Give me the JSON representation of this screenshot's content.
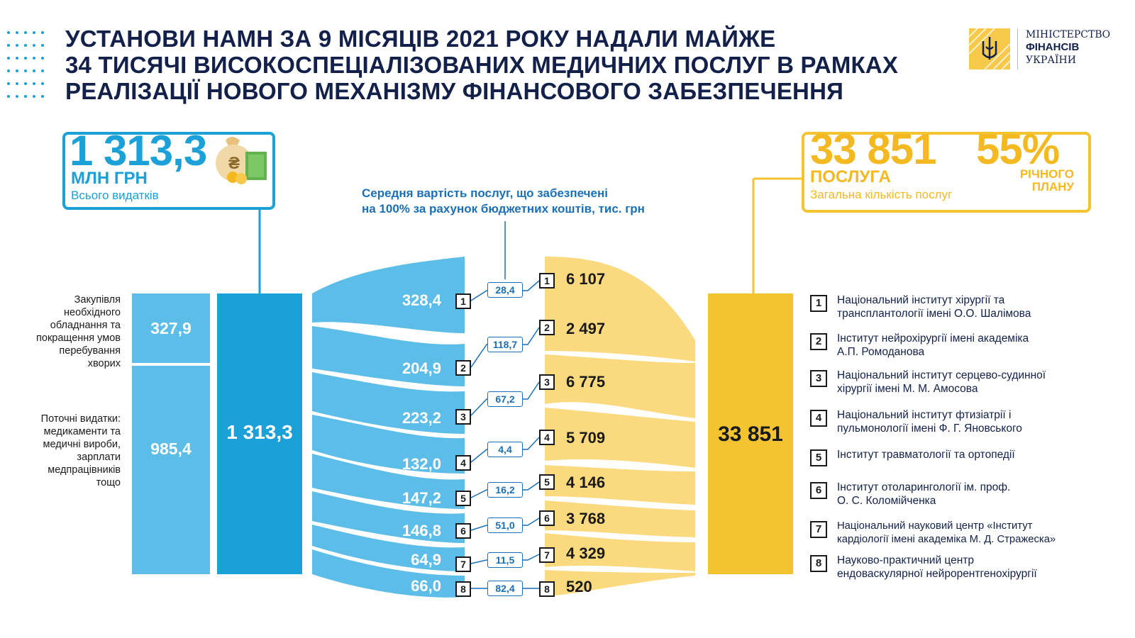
{
  "header": {
    "title": "УСТАНОВИ НАМН ЗА 9 МІСЯЦІВ 2021 РОКУ НАДАЛИ МАЙЖЕ\n34 ТИСЯЧІ ВИСОКОСПЕЦІАЛІЗОВАНИХ МЕДИЧНИХ ПОСЛУГ В РАМКАХ\nРЕАЛІЗАЦІЇ НОВОГО МЕХАНІЗМУ ФІНАНСОВОГО ЗАБЕЗПЕЧЕННЯ",
    "logo_line1": "МІНІСТЕРСТВО",
    "logo_line2": "ФІНАНСІВ",
    "logo_line3": "УКРАЇНИ"
  },
  "total_expenses": {
    "value": "1 313,3",
    "unit": "МЛН ГРН",
    "caption": "Всього видатків"
  },
  "total_services": {
    "value": "33 851",
    "unit": "ПОСЛУГА",
    "caption": "Загальна кількість послуг",
    "percent": "55%",
    "percent_caption": "РІЧНОГО\nПЛАНУ"
  },
  "avg_cost_label": "Середня вартість послуг, що забезпечені\nна 100% за рахунок бюджетних коштів, тис. грн",
  "split": [
    {
      "label": "Закупівля\nнеобхідного\nобладнання та\nпокращення умов\nперебування\nхворих",
      "value": "327,9"
    },
    {
      "label": "Поточні видатки:\nмедикаменти та\nмедичні вироби,\nзарплати\nмедпрацівників\nтощо",
      "value": "985,4"
    }
  ],
  "total_bar_value": "1 313,3",
  "total_services_bar": "33 851",
  "institutions": [
    {
      "num": "1",
      "cost": "328,4",
      "avg": "28,4",
      "services": "6 107",
      "name": "Національний інститут хірургії та\nтрансплантології імені О.О. Шалімова"
    },
    {
      "num": "2",
      "cost": "204,9",
      "avg": "118,7",
      "services": "2 497",
      "name": "Інститут нейрохірургії імені академіка\nА.П. Ромоданова"
    },
    {
      "num": "3",
      "cost": "223,2",
      "avg": "67,2",
      "services": "6 775",
      "name": "Національний інститут серцево-судинної\nхірургії імені М. М. Амосова"
    },
    {
      "num": "4",
      "cost": "132,0",
      "avg": "4,4",
      "services": "5 709",
      "name": "Національний інститут фтизіатрії і\nпульмонології імені Ф. Г. Яновського"
    },
    {
      "num": "5",
      "cost": "147,2",
      "avg": "16,2",
      "services": "4 146",
      "name": "Інститут травматології та ортопедії"
    },
    {
      "num": "6",
      "cost": "146,8",
      "avg": "51,0",
      "services": "3 768",
      "name": "Інститут отоларингології ім. проф.\nО. С. Коломійченка"
    },
    {
      "num": "7",
      "cost": "64,9",
      "avg": "11,5",
      "services": "4 329",
      "name": "Національний науковий центр «Інститут\nкардіології імені академіка М. Д. Стражеска»"
    },
    {
      "num": "8",
      "cost": "66,0",
      "avg": "82,4",
      "services": "520",
      "name": "Науково-практичний центр\nендоваскулярної нейрорентгенохірургії"
    }
  ],
  "colors": {
    "blue": "#1ba0d7",
    "light_blue": "#5dbde9",
    "dark_blue": "#12204a",
    "yellow": "#f4c430",
    "light_yellow": "#fbd97f"
  }
}
